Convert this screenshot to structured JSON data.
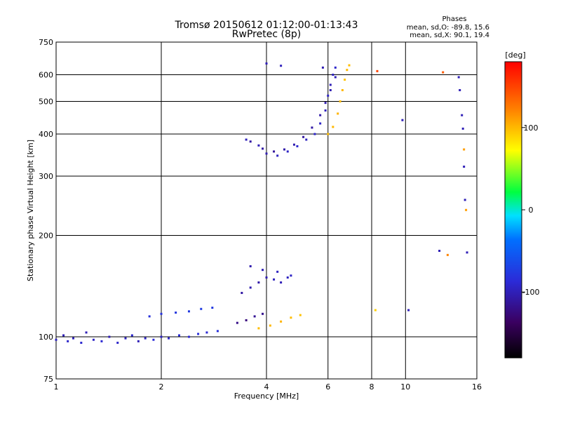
{
  "chart_data": {
    "type": "scatter",
    "title": "Tromsø 20150612 01:12:00-01:13:43",
    "subtitle": "RwPretec (8p)",
    "xlabel": "Frequency [MHz]",
    "ylabel": "Stationary phase Virtual Height [km]",
    "x_scale": "log",
    "y_scale": "log",
    "xlim": [
      1,
      16
    ],
    "ylim": [
      75,
      750
    ],
    "x_ticks": [
      1,
      2,
      4,
      6,
      8,
      10,
      16
    ],
    "y_ticks": [
      75,
      100,
      200,
      300,
      400,
      500,
      600,
      750
    ],
    "x_tick_labels": [
      "1",
      "2",
      "4",
      "6",
      "8",
      "10",
      "16"
    ],
    "y_tick_labels": [
      "75",
      "100",
      "200",
      "300",
      "400",
      "500",
      "600",
      "750"
    ],
    "grid": true,
    "phases_box": {
      "title": "Phases",
      "line1": "mean, sd,O: -89.8, 15.6",
      "line2": "mean, sd,X:  90.1, 19.4"
    },
    "colorbar": {
      "label": "[deg]",
      "range": [
        -180,
        180
      ],
      "ticks": [
        100,
        0,
        -100
      ],
      "tick_labels": [
        "100",
        "0",
        "-100"
      ]
    },
    "series": [
      {
        "points": [
          [
            1.0,
            98,
            -95
          ],
          [
            1.05,
            101,
            -100
          ],
          [
            1.08,
            97,
            -92
          ],
          [
            1.12,
            99,
            -98
          ],
          [
            1.18,
            96,
            -90
          ],
          [
            1.22,
            103,
            -100
          ],
          [
            1.28,
            98,
            -94
          ],
          [
            1.35,
            97,
            -88
          ],
          [
            1.42,
            100,
            -102
          ],
          [
            1.5,
            96,
            -92
          ],
          [
            1.58,
            99,
            -96
          ],
          [
            1.65,
            101,
            -90
          ],
          [
            1.72,
            97,
            -100
          ],
          [
            1.8,
            99,
            -94
          ],
          [
            1.9,
            98,
            -86
          ],
          [
            2.0,
            100,
            -96
          ],
          [
            2.1,
            99,
            -92
          ],
          [
            2.25,
            101,
            -85
          ],
          [
            2.4,
            100,
            -90
          ],
          [
            2.55,
            102,
            -84
          ],
          [
            2.7,
            103,
            -88
          ],
          [
            2.9,
            104,
            -82
          ],
          [
            1.85,
            115,
            -82
          ],
          [
            2.0,
            117,
            -80
          ],
          [
            2.2,
            118,
            -78
          ],
          [
            2.4,
            119,
            -76
          ],
          [
            2.6,
            121,
            -74
          ],
          [
            2.8,
            122,
            -76
          ],
          [
            3.3,
            110,
            -120
          ],
          [
            3.5,
            112,
            -125
          ],
          [
            3.7,
            115,
            -115
          ],
          [
            3.9,
            117,
            -118
          ],
          [
            3.4,
            135,
            -108
          ],
          [
            3.6,
            140,
            -104
          ],
          [
            3.8,
            145,
            -106
          ],
          [
            4.0,
            150,
            -102
          ],
          [
            4.2,
            148,
            -98
          ],
          [
            4.4,
            145,
            -100
          ],
          [
            4.6,
            150,
            -96
          ],
          [
            3.6,
            162,
            -104
          ],
          [
            3.9,
            158,
            -100
          ],
          [
            4.3,
            156,
            -96
          ],
          [
            4.7,
            152,
            -94
          ],
          [
            3.8,
            106,
            98
          ],
          [
            4.1,
            108,
            100
          ],
          [
            4.4,
            111,
            102
          ],
          [
            4.7,
            114,
            98
          ],
          [
            5.0,
            116,
            96
          ]
        ]
      },
      {
        "points": [
          [
            3.5,
            385,
            -98
          ],
          [
            3.8,
            370,
            -100
          ],
          [
            4.0,
            350,
            -102
          ],
          [
            4.3,
            345,
            -96
          ],
          [
            4.6,
            355,
            -94
          ],
          [
            4.9,
            368,
            -90
          ],
          [
            5.2,
            385,
            -96
          ],
          [
            5.5,
            400,
            -92
          ],
          [
            5.7,
            430,
            -94
          ],
          [
            5.9,
            470,
            -98
          ],
          [
            6.0,
            520,
            -94
          ],
          [
            6.1,
            560,
            -100
          ],
          [
            6.2,
            600,
            -96
          ],
          [
            6.3,
            630,
            -92
          ],
          [
            3.6,
            380,
            -110
          ],
          [
            3.9,
            362,
            -108
          ],
          [
            4.2,
            355,
            -112
          ],
          [
            4.5,
            360,
            -106
          ],
          [
            4.8,
            372,
            -104
          ],
          [
            5.1,
            392,
            -110
          ],
          [
            5.4,
            418,
            -108
          ],
          [
            5.7,
            455,
            -106
          ],
          [
            5.9,
            495,
            -104
          ],
          [
            6.1,
            540,
            -102
          ],
          [
            6.3,
            590,
            -100
          ],
          [
            4.0,
            648,
            -100
          ],
          [
            4.4,
            638,
            -98
          ],
          [
            5.8,
            630,
            -102
          ],
          [
            6.0,
            400,
            98
          ],
          [
            6.2,
            420,
            100
          ],
          [
            6.4,
            460,
            102
          ],
          [
            6.5,
            500,
            98
          ],
          [
            6.6,
            540,
            100
          ],
          [
            6.7,
            580,
            96
          ],
          [
            6.8,
            620,
            100
          ],
          [
            6.9,
            640,
            98
          ]
        ]
      },
      {
        "points": [
          [
            8.3,
            615,
            150
          ],
          [
            9.8,
            440,
            -100
          ],
          [
            8.2,
            120,
            90
          ],
          [
            10.2,
            120,
            -100
          ],
          [
            12.5,
            180,
            -100
          ],
          [
            12.8,
            610,
            140
          ],
          [
            13.2,
            175,
            120
          ],
          [
            14.2,
            590,
            -100
          ],
          [
            14.3,
            540,
            -100
          ],
          [
            14.5,
            455,
            -100
          ],
          [
            14.6,
            415,
            -100
          ],
          [
            14.7,
            360,
            110
          ],
          [
            14.7,
            320,
            -100
          ],
          [
            14.8,
            255,
            -100
          ],
          [
            14.9,
            238,
            110
          ],
          [
            15.0,
            178,
            -100
          ]
        ]
      }
    ]
  }
}
